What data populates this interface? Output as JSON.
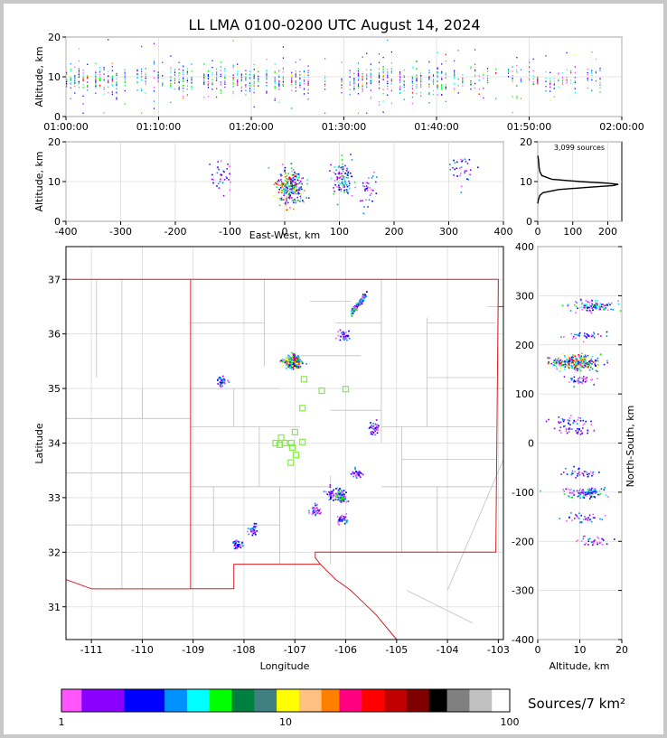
{
  "title": "LL LMA 0100-0200 UTC August 14, 2024",
  "colors": {
    "grid": "#dcdcdc",
    "county": "#c0c0c0",
    "state": "#d42020",
    "station": "#80ee40",
    "profile": "#000000"
  },
  "chart_data": [
    {
      "id": "time-height",
      "type": "scatter",
      "xlabel": "",
      "ylabel": "Altitude, km",
      "xticks": [
        "01:00:00",
        "01:10:00",
        "01:20:00",
        "01:30:00",
        "01:40:00",
        "01:50:00",
        "02:00:00"
      ],
      "xlim_minutes": [
        0,
        60
      ],
      "ylim": [
        0,
        20
      ],
      "yticks": [
        0,
        10,
        20
      ]
    },
    {
      "id": "ew-height",
      "type": "scatter",
      "xlabel": "East-West, km",
      "ylabel": "Altitude, km",
      "xlim": [
        -400,
        400
      ],
      "xticks": [
        -400,
        -300,
        -200,
        -100,
        0,
        100,
        200,
        300,
        400
      ],
      "ylim": [
        0,
        20
      ],
      "yticks": [
        0,
        10,
        20
      ],
      "clusters": [
        {
          "x": -115,
          "alt": 11,
          "density": "low"
        },
        {
          "x": 10,
          "alt": 9,
          "density": "high"
        },
        {
          "x": 105,
          "alt": 11,
          "density": "medium"
        },
        {
          "x": 150,
          "alt": 8,
          "density": "low"
        },
        {
          "x": 320,
          "alt": 13,
          "density": "low"
        }
      ]
    },
    {
      "id": "altitude-histogram",
      "type": "line",
      "annotation": "3,099 sources",
      "xlim": [
        0,
        240
      ],
      "xticks": [
        0,
        100,
        200
      ],
      "ylim": [
        0,
        20
      ],
      "yticks": [
        0,
        10,
        20
      ],
      "profile": [
        {
          "count": 0,
          "alt": 4.5
        },
        {
          "count": 2,
          "alt": 5.5
        },
        {
          "count": 6,
          "alt": 6.5
        },
        {
          "count": 15,
          "alt": 7.2
        },
        {
          "count": 60,
          "alt": 8.0
        },
        {
          "count": 150,
          "alt": 8.6
        },
        {
          "count": 215,
          "alt": 9.0
        },
        {
          "count": 230,
          "alt": 9.3
        },
        {
          "count": 200,
          "alt": 9.6
        },
        {
          "count": 120,
          "alt": 10.0
        },
        {
          "count": 40,
          "alt": 10.6
        },
        {
          "count": 12,
          "alt": 11.5
        },
        {
          "count": 6,
          "alt": 12.5
        },
        {
          "count": 4,
          "alt": 13.5
        },
        {
          "count": 3,
          "alt": 14.5
        },
        {
          "count": 2,
          "alt": 15.5
        },
        {
          "count": 0,
          "alt": 16.5
        }
      ]
    },
    {
      "id": "plan-view",
      "type": "scatter",
      "xlabel": "Longitude",
      "ylabel": "Latitude",
      "xlim": [
        -111.5,
        -102.9
      ],
      "xticks": [
        -111,
        -110,
        -109,
        -108,
        -107,
        -106,
        -105,
        -104,
        -103
      ],
      "ylim": [
        30.4,
        37.6
      ],
      "yticks": [
        31,
        32,
        33,
        34,
        35,
        36,
        37
      ],
      "clusters": [
        {
          "lon": -107.05,
          "lat": 35.5,
          "density": "high"
        },
        {
          "lon": -105.75,
          "lat": 36.55,
          "density": "medium"
        },
        {
          "lon": -106.05,
          "lat": 35.98,
          "density": "low"
        },
        {
          "lon": -108.45,
          "lat": 35.15,
          "density": "low"
        },
        {
          "lon": -105.45,
          "lat": 34.3,
          "density": "low"
        },
        {
          "lon": -105.8,
          "lat": 33.45,
          "density": "low"
        },
        {
          "lon": -106.3,
          "lat": 33.08,
          "density": "low"
        },
        {
          "lon": -106.1,
          "lat": 33.05,
          "density": "medium"
        },
        {
          "lon": -106.6,
          "lat": 32.78,
          "density": "low"
        },
        {
          "lon": -106.1,
          "lat": 32.62,
          "density": "low"
        },
        {
          "lon": -107.85,
          "lat": 32.4,
          "density": "low"
        },
        {
          "lon": -108.15,
          "lat": 32.15,
          "density": "low"
        }
      ],
      "stations": [
        {
          "lon": -106.82,
          "lat": 35.17
        },
        {
          "lon": -106.47,
          "lat": 34.96
        },
        {
          "lon": -106.0,
          "lat": 34.99
        },
        {
          "lon": -106.85,
          "lat": 34.64
        },
        {
          "lon": -107.0,
          "lat": 34.2
        },
        {
          "lon": -107.27,
          "lat": 34.1
        },
        {
          "lon": -107.38,
          "lat": 34.0
        },
        {
          "lon": -107.2,
          "lat": 34.0
        },
        {
          "lon": -107.07,
          "lat": 34.0
        },
        {
          "lon": -106.85,
          "lat": 34.02
        },
        {
          "lon": -107.3,
          "lat": 33.97
        },
        {
          "lon": -107.05,
          "lat": 33.92
        },
        {
          "lon": -106.98,
          "lat": 33.78
        },
        {
          "lon": -107.08,
          "lat": 33.64
        }
      ]
    },
    {
      "id": "height-ns",
      "type": "scatter",
      "xlabel": "Altitude, km",
      "ylabel": "North-South, km",
      "xlim": [
        0,
        20
      ],
      "xticks": [
        0,
        10,
        20
      ],
      "ylim": [
        -400,
        400
      ],
      "yticks": [
        -400,
        -300,
        -200,
        -100,
        0,
        100,
        200,
        300,
        400
      ],
      "clusters": [
        {
          "alt": 13,
          "y": 280,
          "density": "medium"
        },
        {
          "alt": 10,
          "y": 220,
          "density": "low"
        },
        {
          "alt": 9,
          "y": 165,
          "density": "high"
        },
        {
          "alt": 10,
          "y": 130,
          "density": "low"
        },
        {
          "alt": 8,
          "y": 45,
          "density": "low"
        },
        {
          "alt": 9,
          "y": 30,
          "density": "low"
        },
        {
          "alt": 10,
          "y": -60,
          "density": "low"
        },
        {
          "alt": 11,
          "y": -100,
          "density": "medium"
        },
        {
          "alt": 11,
          "y": -150,
          "density": "low"
        },
        {
          "alt": 13,
          "y": -200,
          "density": "low"
        }
      ]
    },
    {
      "id": "colorbar",
      "type": "heatmap",
      "label": "Sources/7 km²",
      "scale": "log",
      "ticks": [
        "1",
        "10",
        "100"
      ],
      "colors": [
        "#ff55ff",
        "#8a00ff",
        "#8a00ff",
        "#0000ff",
        "#0000ff",
        "#0090ff",
        "#00ffff",
        "#00ff00",
        "#008040",
        "#408080",
        "#ffff00",
        "#ffc080",
        "#ff8000",
        "#ff0080",
        "#ff0000",
        "#c00000",
        "#800000",
        "#000000",
        "#808080",
        "#c0c0c0",
        "#ffffff"
      ],
      "stops": [
        0.0,
        0.045,
        0.09,
        0.14,
        0.18,
        0.23,
        0.28,
        0.33,
        0.38,
        0.43,
        0.48,
        0.53,
        0.58,
        0.62,
        0.67,
        0.72,
        0.77,
        0.82,
        0.86,
        0.91,
        0.96,
        1.0
      ]
    }
  ]
}
